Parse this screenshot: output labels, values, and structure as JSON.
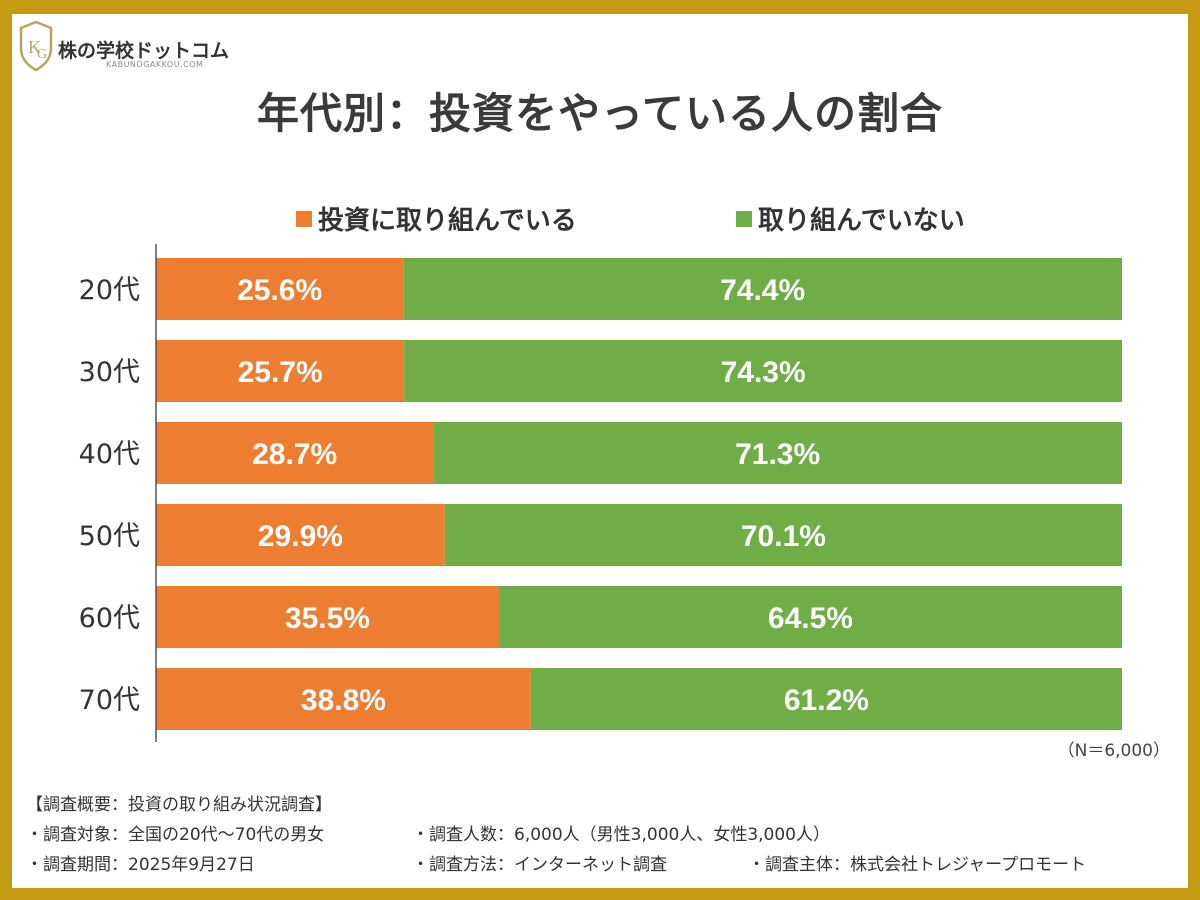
{
  "logo": {
    "name": "株の学校ドットコム",
    "sub": "KABUNOGAKKOU.COM"
  },
  "colors": {
    "investing": "#ed7d31",
    "not_investing": "#70ad47",
    "frame": "#c39a12"
  },
  "chart_data": {
    "type": "bar",
    "orientation": "horizontal",
    "stacked": true,
    "percent": true,
    "title": "年代別：投資をやっている人の割合",
    "categories": [
      "20代",
      "30代",
      "40代",
      "50代",
      "60代",
      "70代"
    ],
    "series": [
      {
        "name": "投資に取り組んでいる",
        "values": [
          25.6,
          25.7,
          28.7,
          29.9,
          35.5,
          38.8
        ],
        "labels": [
          "25.6%",
          "25.7%",
          "28.7%",
          "29.9%",
          "35.5%",
          "38.8%"
        ]
      },
      {
        "name": "取り組んでいない",
        "values": [
          74.4,
          74.3,
          71.3,
          70.1,
          64.5,
          61.2
        ],
        "labels": [
          "74.4%",
          "74.3%",
          "71.3%",
          "70.1%",
          "64.5%",
          "61.2%"
        ]
      }
    ],
    "xlim": [
      0,
      100
    ],
    "legend": "top",
    "grid": false,
    "note": "（N＝6,000）"
  },
  "survey": {
    "heading": "【調査概要：投資の取り組み状況調査】",
    "target": "・調査対象：全国の20代～70代の男女",
    "respondents": "・調査人数：6,000人（男性3,000人、女性3,000人）",
    "period": "・調査期間：2025年9月27日",
    "method": "・調査方法：インターネット調査",
    "organizer": "・調査主体：株式会社トレジャープロモート"
  }
}
